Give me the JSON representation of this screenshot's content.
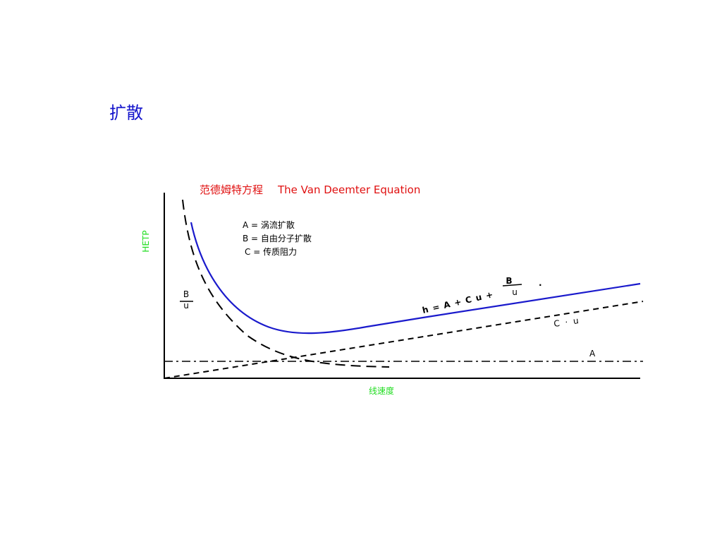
{
  "header": {
    "title": "扩散"
  },
  "diagram": {
    "title_cn": "范德姆特方程",
    "title_en": "The Van Deemter Equation",
    "definitions": [
      "A = 涡流扩散",
      "B = 自由分子扩散",
      "C = 传质阻力"
    ],
    "y_label": "HETP",
    "x_label": "线速度",
    "b_term": {
      "numerator": "B",
      "denominator": "u"
    },
    "equation": {
      "text": "h = A +  C  u   +",
      "fraction": {
        "numerator": "B",
        "denominator": "u"
      },
      "end": "."
    },
    "c_term": "C · u",
    "a_term": "A"
  }
}
